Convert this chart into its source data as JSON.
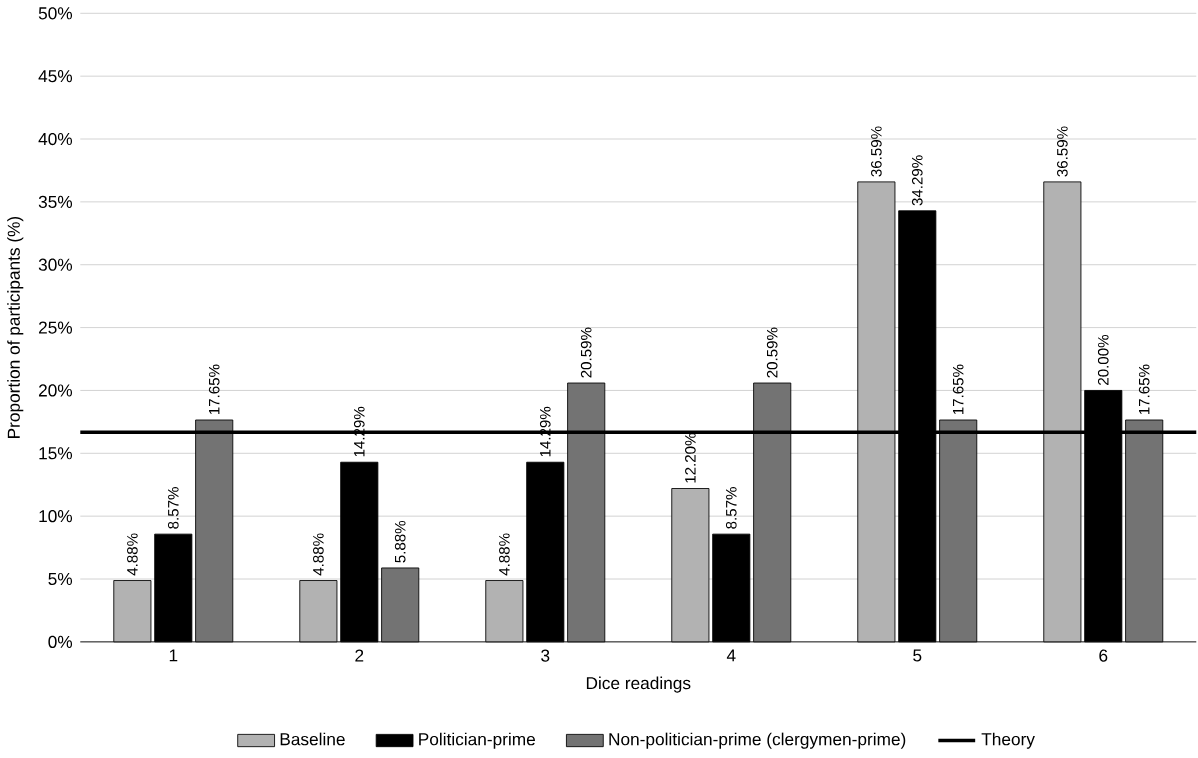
{
  "chart_data": {
    "type": "bar",
    "xlabel": "Dice readings",
    "ylabel": "Proportion of participants (%)",
    "categories": [
      "1",
      "2",
      "3",
      "4",
      "5",
      "6"
    ],
    "series": [
      {
        "name": "Baseline",
        "color": "#000000",
        "values": [
          4.88,
          4.88,
          4.88,
          12.2,
          36.59,
          36.59
        ],
        "value_labels": [
          "4.88%",
          "4.88%",
          "4.88%",
          "12.20%",
          "36.59%",
          "36.59%"
        ]
      },
      {
        "name": "Politician-prime",
        "color": "#000000",
        "values": [
          8.57,
          14.29,
          14.29,
          8.57,
          34.29,
          20.0
        ],
        "value_labels": [
          "8.57%",
          "14.29%",
          "14.29%",
          "8.57%",
          "34.29%",
          "20.00%"
        ]
      },
      {
        "name": "Non-politician-prime (clergymen-prime)",
        "color": "#000000",
        "values": [
          17.65,
          5.88,
          20.59,
          20.59,
          17.65,
          17.65
        ],
        "value_labels": [
          "17.65%",
          "5.88%",
          "20.59%",
          "20.59%",
          "17.65%",
          "17.65%"
        ]
      }
    ],
    "ref_lines": [
      {
        "axis": "y",
        "value": 16.67,
        "label": "Theory",
        "color": "#000000"
      }
    ],
    "ylim": [
      0,
      50
    ],
    "yticks": [
      {
        "value": 0,
        "label": "0%"
      },
      {
        "value": 5,
        "label": "5%"
      },
      {
        "value": 10,
        "label": "10%"
      },
      {
        "value": 15,
        "label": "15%"
      },
      {
        "value": 20,
        "label": "20%"
      },
      {
        "value": 25,
        "label": "25%"
      },
      {
        "value": 30,
        "label": "30%"
      },
      {
        "value": 35,
        "label": "35%"
      },
      {
        "value": 40,
        "label": "40%"
      },
      {
        "value": 45,
        "label": "45%"
      },
      {
        "value": 50,
        "label": "50%"
      }
    ],
    "grid": "y",
    "legend": "bottom"
  }
}
